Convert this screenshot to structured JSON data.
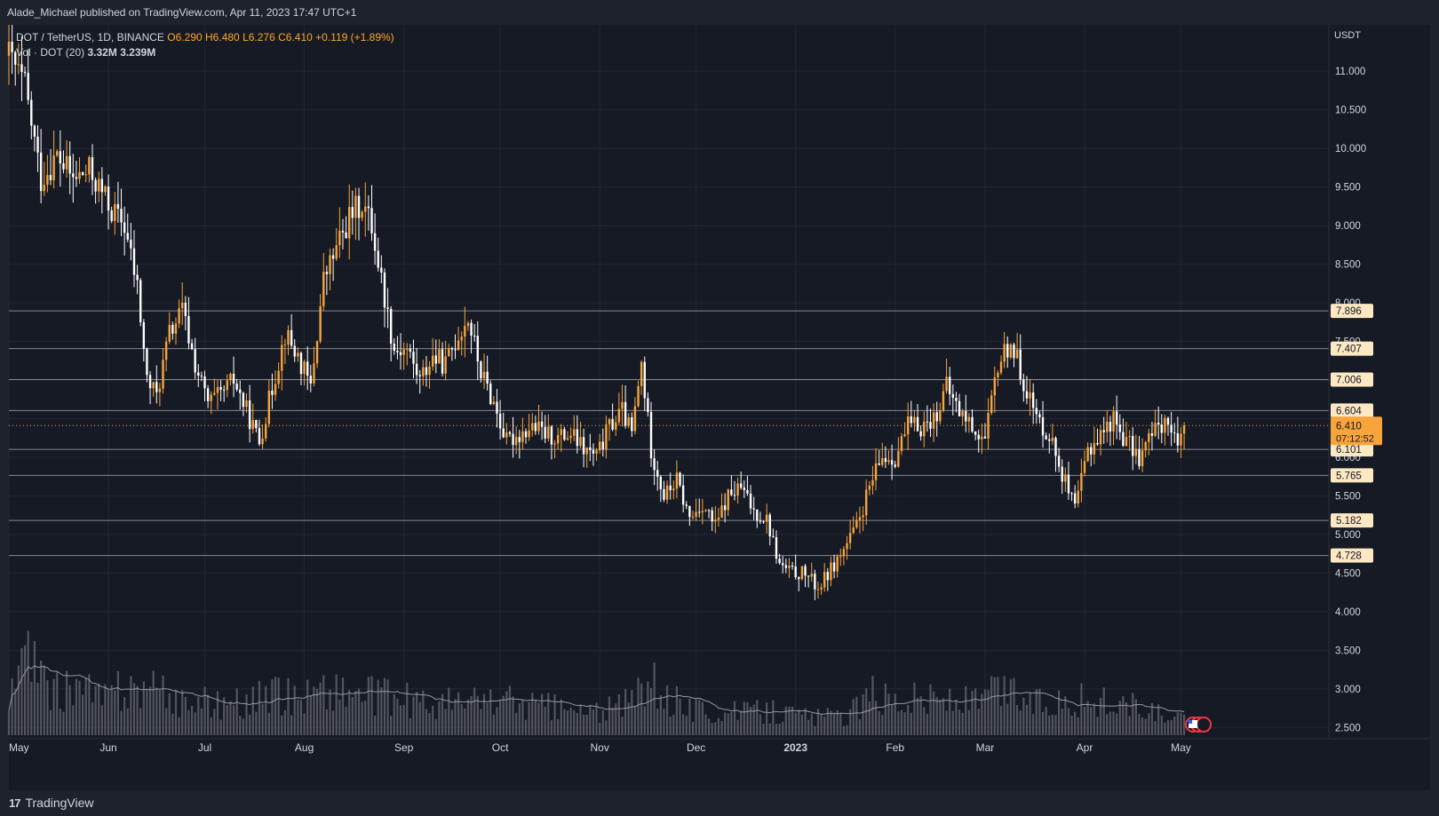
{
  "header": {
    "published_by": "Alade_Michael published on TradingView.com, Apr 11, 2023 17:47 UTC+1"
  },
  "legend": {
    "symbol": "DOT / TetherUS, 1D, BINANCE",
    "open": "O6.290",
    "high": "H6.480",
    "low": "L6.276",
    "close": "C6.410",
    "change": "+0.119 (+1.89%)",
    "volume_label": "Vol · DOT (20)",
    "volume_value": "3.32M",
    "volume_ma": "3.239M"
  },
  "footer": {
    "brand": "TradingView",
    "brand_mark": "17"
  },
  "colors": {
    "background": "#161a25",
    "up_candle": "#f7a43a",
    "down_candle": "#ffffff",
    "level_line": "#9a9ca3",
    "price_line": "#f7a43a",
    "price_badge": "#f7a43a",
    "level_badge": "#fde8c4"
  },
  "chart_data": {
    "type": "candlestick",
    "symbol": "DOT/USDT",
    "timeframe": "1D",
    "exchange": "BINANCE",
    "y_unit": "USDT",
    "ylim": [
      2.4,
      11.6
    ],
    "y_ticks": [
      2.5,
      3.0,
      3.5,
      4.0,
      4.5,
      5.0,
      5.5,
      6.0,
      6.5,
      7.0,
      7.5,
      8.0,
      8.5,
      9.0,
      9.5,
      10.0,
      10.5,
      11.0
    ],
    "y_tick_labels": [
      "2.500",
      "3.000",
      "3.500",
      "4.000",
      "4.500",
      "5.000",
      "5.500",
      "6.000",
      "6.500",
      "7.000",
      "7.500",
      "8.000",
      "8.500",
      "9.000",
      "9.500",
      "10.000",
      "10.500",
      "11.000"
    ],
    "x_labels": [
      "May",
      "Jun",
      "Jul",
      "Aug",
      "Sep",
      "Oct",
      "Nov",
      "Dec",
      "2023",
      "Feb",
      "Mar",
      "Apr",
      "May"
    ],
    "grid": true,
    "horizontal_levels": [
      {
        "value": 7.896,
        "label": "7.896"
      },
      {
        "value": 7.407,
        "label": "7.407"
      },
      {
        "value": 7.006,
        "label": "7.006"
      },
      {
        "value": 6.604,
        "label": "6.604"
      },
      {
        "value": 6.101,
        "label": "6.101"
      },
      {
        "value": 5.765,
        "label": "5.765"
      },
      {
        "value": 5.182,
        "label": "5.182"
      },
      {
        "value": 4.728,
        "label": "4.728"
      }
    ],
    "last_price": {
      "value": 6.41,
      "label": "6.410",
      "countdown": "07:12:52"
    },
    "price_anchors": [
      [
        0,
        11.2
      ],
      [
        5,
        10.8
      ],
      [
        10,
        9.6
      ],
      [
        15,
        9.9
      ],
      [
        20,
        9.6
      ],
      [
        25,
        9.7
      ],
      [
        28,
        9.5
      ],
      [
        32,
        9.2
      ],
      [
        36,
        9.0
      ],
      [
        40,
        8.2
      ],
      [
        43,
        7.0
      ],
      [
        46,
        6.8
      ],
      [
        50,
        7.6
      ],
      [
        54,
        7.9
      ],
      [
        58,
        7.2
      ],
      [
        62,
        6.7
      ],
      [
        66,
        6.8
      ],
      [
        70,
        7.0
      ],
      [
        74,
        6.6
      ],
      [
        78,
        6.2
      ],
      [
        82,
        6.9
      ],
      [
        86,
        7.6
      ],
      [
        90,
        7.3
      ],
      [
        94,
        6.9
      ],
      [
        98,
        8.3
      ],
      [
        102,
        8.7
      ],
      [
        106,
        9.1
      ],
      [
        110,
        9.3
      ],
      [
        113,
        9.0
      ],
      [
        116,
        8.3
      ],
      [
        120,
        7.4
      ],
      [
        124,
        7.4
      ],
      [
        128,
        7.0
      ],
      [
        132,
        7.3
      ],
      [
        136,
        7.2
      ],
      [
        140,
        7.6
      ],
      [
        143,
        7.8
      ],
      [
        147,
        7.1
      ],
      [
        151,
        6.7
      ],
      [
        155,
        6.2
      ],
      [
        159,
        6.3
      ],
      [
        163,
        6.4
      ],
      [
        167,
        6.3
      ],
      [
        171,
        6.25
      ],
      [
        175,
        6.3
      ],
      [
        179,
        6.1
      ],
      [
        183,
        6.0
      ],
      [
        187,
        6.4
      ],
      [
        191,
        6.6
      ],
      [
        194,
        6.3
      ],
      [
        197,
        7.2
      ],
      [
        200,
        6.1
      ],
      [
        204,
        5.5
      ],
      [
        208,
        5.7
      ],
      [
        212,
        5.2
      ],
      [
        216,
        5.4
      ],
      [
        220,
        5.1
      ],
      [
        224,
        5.5
      ],
      [
        228,
        5.6
      ],
      [
        232,
        5.3
      ],
      [
        236,
        5.2
      ],
      [
        240,
        4.6
      ],
      [
        244,
        4.5
      ],
      [
        248,
        4.5
      ],
      [
        252,
        4.3
      ],
      [
        256,
        4.55
      ],
      [
        260,
        4.8
      ],
      [
        264,
        5.1
      ],
      [
        268,
        5.6
      ],
      [
        272,
        6.0
      ],
      [
        276,
        6.0
      ],
      [
        280,
        6.4
      ],
      [
        284,
        6.4
      ],
      [
        288,
        6.5
      ],
      [
        292,
        6.9
      ],
      [
        296,
        6.6
      ],
      [
        300,
        6.4
      ],
      [
        304,
        6.2
      ],
      [
        308,
        7.2
      ],
      [
        312,
        7.5
      ],
      [
        316,
        7.0
      ],
      [
        320,
        6.5
      ],
      [
        324,
        6.3
      ],
      [
        328,
        5.8
      ],
      [
        332,
        5.3
      ],
      [
        336,
        6.1
      ],
      [
        340,
        6.3
      ],
      [
        344,
        6.5
      ],
      [
        348,
        6.2
      ],
      [
        352,
        6.0
      ],
      [
        356,
        6.3
      ],
      [
        360,
        6.5
      ],
      [
        363,
        6.2
      ],
      [
        366,
        6.41
      ]
    ],
    "volume": {
      "label": "Vol · DOT (20)",
      "ma_period": 20,
      "anchors": [
        [
          0,
          0.35
        ],
        [
          5,
          0.85
        ],
        [
          10,
          0.55
        ],
        [
          15,
          0.45
        ],
        [
          20,
          0.55
        ],
        [
          25,
          0.45
        ],
        [
          30,
          0.4
        ],
        [
          40,
          0.55
        ],
        [
          50,
          0.4
        ],
        [
          60,
          0.35
        ],
        [
          70,
          0.35
        ],
        [
          80,
          0.4
        ],
        [
          90,
          0.45
        ],
        [
          100,
          0.5
        ],
        [
          110,
          0.45
        ],
        [
          120,
          0.4
        ],
        [
          130,
          0.35
        ],
        [
          140,
          0.35
        ],
        [
          150,
          0.4
        ],
        [
          160,
          0.35
        ],
        [
          170,
          0.3
        ],
        [
          180,
          0.25
        ],
        [
          190,
          0.3
        ],
        [
          200,
          0.55
        ],
        [
          210,
          0.3
        ],
        [
          220,
          0.25
        ],
        [
          230,
          0.25
        ],
        [
          240,
          0.25
        ],
        [
          250,
          0.2
        ],
        [
          260,
          0.2
        ],
        [
          270,
          0.45
        ],
        [
          280,
          0.4
        ],
        [
          290,
          0.4
        ],
        [
          300,
          0.35
        ],
        [
          310,
          0.5
        ],
        [
          320,
          0.35
        ],
        [
          330,
          0.4
        ],
        [
          340,
          0.35
        ],
        [
          350,
          0.3
        ],
        [
          360,
          0.2
        ],
        [
          366,
          0.15
        ]
      ]
    }
  }
}
